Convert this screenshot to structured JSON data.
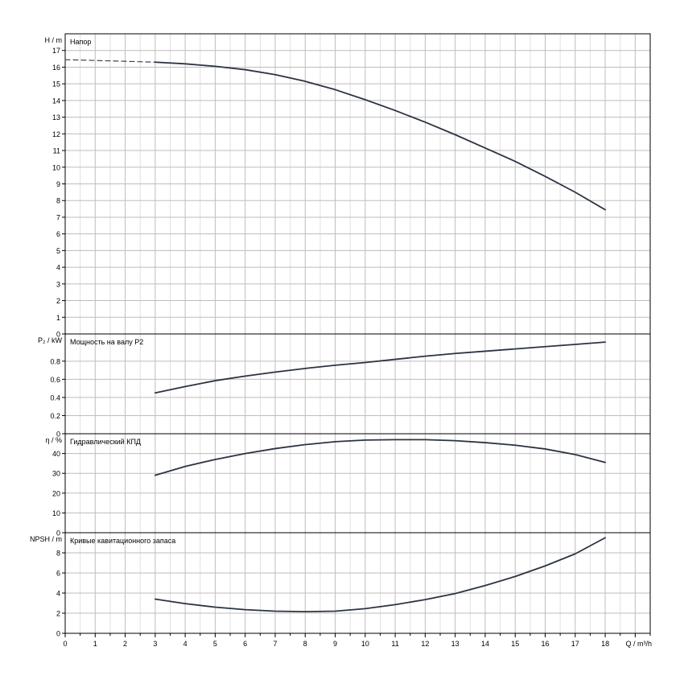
{
  "chart_data": [
    {
      "type": "line",
      "ylabel": "H / m",
      "title": "Напор",
      "ylim": [
        0,
        18
      ],
      "yticks": [
        0,
        1,
        2,
        3,
        4,
        5,
        6,
        7,
        8,
        9,
        10,
        11,
        12,
        13,
        14,
        15,
        16,
        17
      ],
      "series": [
        {
          "style": "dashed",
          "x": [
            0,
            3
          ],
          "y": [
            16.45,
            16.3
          ]
        },
        {
          "style": "solid",
          "x": [
            3,
            4,
            5,
            6,
            7,
            8,
            9,
            10,
            11,
            12,
            13,
            14,
            15,
            16,
            17,
            18
          ],
          "y": [
            16.3,
            16.2,
            16.05,
            15.85,
            15.55,
            15.15,
            14.65,
            14.05,
            13.4,
            12.7,
            11.95,
            11.15,
            10.35,
            9.45,
            8.5,
            7.45
          ]
        }
      ]
    },
    {
      "type": "line",
      "ylabel": "P₂ / kW",
      "title": "Мощность на валу P2",
      "ylim": [
        0,
        1.1
      ],
      "yticks": [
        0,
        0.2,
        0.4,
        0.6,
        0.8
      ],
      "series": [
        {
          "style": "solid",
          "x": [
            3,
            4,
            5,
            6,
            7,
            8,
            9,
            10,
            11,
            12,
            13,
            14,
            15,
            16,
            17,
            18
          ],
          "y": [
            0.45,
            0.52,
            0.585,
            0.635,
            0.68,
            0.72,
            0.755,
            0.785,
            0.82,
            0.855,
            0.885,
            0.91,
            0.935,
            0.96,
            0.985,
            1.01
          ]
        }
      ]
    },
    {
      "type": "line",
      "ylabel": "η / %",
      "title": "Гидравлический КПД",
      "ylim": [
        0,
        50
      ],
      "yticks": [
        0,
        10,
        20,
        30,
        40
      ],
      "series": [
        {
          "style": "solid",
          "x": [
            3,
            4,
            5,
            6,
            7,
            8,
            9,
            10,
            11,
            12,
            13,
            14,
            15,
            16,
            17,
            18
          ],
          "y": [
            29,
            33.5,
            37,
            40,
            42.5,
            44.5,
            46,
            46.8,
            47,
            47,
            46.5,
            45.5,
            44.2,
            42.3,
            39.5,
            35.5
          ]
        }
      ]
    },
    {
      "type": "line",
      "ylabel": "NPSH / m",
      "title": "Кривые кавитационного запаса",
      "ylim": [
        0,
        10
      ],
      "yticks": [
        0,
        2,
        4,
        6,
        8
      ],
      "series": [
        {
          "style": "solid",
          "x": [
            3,
            4,
            5,
            6,
            7,
            8,
            9,
            10,
            11,
            12,
            13,
            14,
            15,
            16,
            17,
            18
          ],
          "y": [
            3.4,
            2.95,
            2.6,
            2.35,
            2.2,
            2.15,
            2.2,
            2.45,
            2.85,
            3.35,
            3.95,
            4.75,
            5.65,
            6.7,
            7.9,
            9.5
          ]
        }
      ]
    }
  ],
  "x_axis": {
    "label": "Q / m³/h",
    "xlim": [
      0,
      19.5
    ],
    "ticks": [
      0,
      1,
      2,
      3,
      4,
      5,
      6,
      7,
      8,
      9,
      10,
      11,
      12,
      13,
      14,
      15,
      16,
      17,
      18
    ]
  }
}
